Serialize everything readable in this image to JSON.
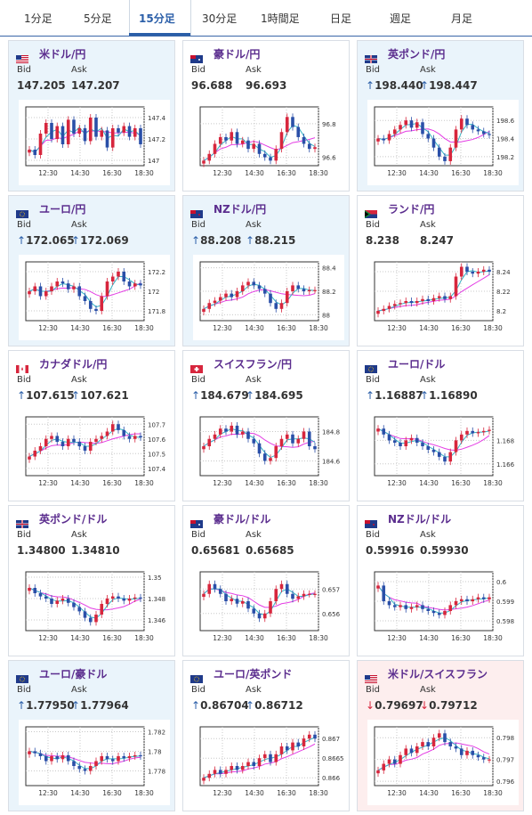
{
  "tabs": [
    "1分足",
    "5分足",
    "15分足",
    "30分足",
    "1時間足",
    "日足",
    "週足",
    "月足"
  ],
  "active_tab": "15分足",
  "labels": {
    "bid": "Bid",
    "ask": "Ask"
  },
  "xticks": [
    "12:30",
    "14:30",
    "16:30",
    "18:30"
  ],
  "colors": {
    "up": "#2a5ea8",
    "down": "#d7263d",
    "candle_up": "#d7263d",
    "candle_down": "#2a4fa8",
    "ma_long": "#e43de4",
    "ma_short": "#34b3c5",
    "active": "#2a5ea8"
  },
  "cards": [
    {
      "pair": "米ドル/円",
      "bid": "147.205",
      "ask": "147.207",
      "bid_dir": "",
      "ask_dir": "",
      "bg": "blue",
      "flag": "us",
      "yticks": [
        "147.4",
        "147.2",
        "147"
      ],
      "ylim": [
        146.95,
        147.5
      ],
      "series": [
        147.1,
        147.05,
        147.25,
        147.35,
        147.2,
        147.32,
        147.15,
        147.38,
        147.25,
        147.3,
        147.18,
        147.4,
        147.22,
        147.28,
        147.12,
        147.3,
        147.26,
        147.32,
        147.22,
        147.3,
        147.15
      ]
    },
    {
      "pair": "豪ドル/円",
      "bid": "96.688",
      "ask": "96.693",
      "bid_dir": "",
      "ask_dir": "",
      "bg": "white",
      "flag": "au",
      "yticks": [
        "96.8",
        "96.6"
      ],
      "ylim": [
        96.55,
        96.9
      ],
      "series": [
        96.58,
        96.62,
        96.68,
        96.72,
        96.7,
        96.75,
        96.68,
        96.7,
        96.65,
        96.68,
        96.62,
        96.6,
        96.58,
        96.65,
        96.75,
        96.84,
        96.78,
        96.72,
        96.68,
        96.65,
        96.66
      ]
    },
    {
      "pair": "英ポンド/円",
      "bid": "198.440",
      "ask": "198.447",
      "bid_dir": "up",
      "ask_dir": "up",
      "bg": "blue",
      "flag": "gb",
      "yticks": [
        "198.6",
        "198.4",
        "198.2"
      ],
      "ylim": [
        198.1,
        198.75
      ],
      "series": [
        198.4,
        198.38,
        198.45,
        198.5,
        198.55,
        198.6,
        198.52,
        198.58,
        198.45,
        198.4,
        198.3,
        198.2,
        198.15,
        198.3,
        198.5,
        198.62,
        198.55,
        198.5,
        198.48,
        198.45,
        198.44
      ]
    },
    {
      "pair": "ユーロ/円",
      "bid": "172.065",
      "ask": "172.069",
      "bid_dir": "up",
      "ask_dir": "up",
      "bg": "blue",
      "flag": "eu",
      "yticks": [
        "172.2",
        "172",
        "171.8"
      ],
      "ylim": [
        171.7,
        172.3
      ],
      "series": [
        172.0,
        172.05,
        171.95,
        172.0,
        172.05,
        172.1,
        172.08,
        172.02,
        172.05,
        171.95,
        171.9,
        171.82,
        171.8,
        171.95,
        172.1,
        172.15,
        172.2,
        172.1,
        172.05,
        172.08,
        172.06
      ]
    },
    {
      "pair": "NZドル/円",
      "bid": "88.208",
      "ask": "88.215",
      "bid_dir": "up",
      "ask_dir": "up",
      "bg": "blue",
      "flag": "nz",
      "yticks": [
        "88.4",
        "88.2",
        "88"
      ],
      "ylim": [
        87.95,
        88.45
      ],
      "series": [
        88.05,
        88.1,
        88.12,
        88.15,
        88.18,
        88.15,
        88.2,
        88.25,
        88.28,
        88.25,
        88.22,
        88.18,
        88.1,
        88.05,
        88.1,
        88.2,
        88.25,
        88.22,
        88.2,
        88.21,
        88.21
      ]
    },
    {
      "pair": "ランド/円",
      "bid": "8.238",
      "ask": "8.247",
      "bid_dir": "",
      "ask_dir": "",
      "bg": "white",
      "flag": "za",
      "yticks": [
        "8.24",
        "8.22",
        "8.2"
      ],
      "ylim": [
        8.19,
        8.25
      ],
      "series": [
        8.2,
        8.202,
        8.205,
        8.207,
        8.208,
        8.21,
        8.208,
        8.21,
        8.212,
        8.21,
        8.213,
        8.215,
        8.212,
        8.215,
        8.235,
        8.245,
        8.24,
        8.238,
        8.24,
        8.242,
        8.24
      ]
    },
    {
      "pair": "カナダドル/円",
      "bid": "107.615",
      "ask": "107.621",
      "bid_dir": "up",
      "ask_dir": "up",
      "bg": "white",
      "flag": "ca",
      "yticks": [
        "107.7",
        "107.6",
        "107.5",
        "107.4"
      ],
      "ylim": [
        107.35,
        107.75
      ],
      "series": [
        107.48,
        107.52,
        107.55,
        107.6,
        107.62,
        107.58,
        107.55,
        107.6,
        107.58,
        107.55,
        107.52,
        107.58,
        107.6,
        107.62,
        107.65,
        107.7,
        107.66,
        107.62,
        107.6,
        107.62,
        107.61
      ]
    },
    {
      "pair": "スイスフラン/円",
      "bid": "184.679",
      "ask": "184.695",
      "bid_dir": "up",
      "ask_dir": "up",
      "bg": "white",
      "flag": "ch",
      "yticks": [
        "184.8",
        "184.6"
      ],
      "ylim": [
        184.5,
        184.9
      ],
      "series": [
        184.7,
        184.75,
        184.78,
        184.82,
        184.8,
        184.84,
        184.78,
        184.8,
        184.75,
        184.72,
        184.65,
        184.6,
        184.62,
        184.7,
        184.75,
        184.78,
        184.72,
        184.75,
        184.8,
        184.7,
        184.68
      ]
    },
    {
      "pair": "ユーロ/ドル",
      "bid": "1.16887",
      "ask": "1.16890",
      "bid_dir": "up",
      "ask_dir": "up",
      "bg": "white",
      "flag": "eu",
      "yticks": [
        "1.168",
        "1.166"
      ],
      "ylim": [
        1.165,
        1.17
      ],
      "series": [
        1.169,
        1.1685,
        1.168,
        1.1678,
        1.1675,
        1.168,
        1.1682,
        1.1678,
        1.1675,
        1.1672,
        1.167,
        1.1666,
        1.1662,
        1.167,
        1.168,
        1.1685,
        1.1688,
        1.1686,
        1.1687,
        1.1688,
        1.1689
      ]
    },
    {
      "pair": "英ポンド/ドル",
      "bid": "1.34800",
      "ask": "1.34810",
      "bid_dir": "",
      "ask_dir": "",
      "bg": "white",
      "flag": "gb",
      "yticks": [
        "1.35",
        "1.348",
        "1.346"
      ],
      "ylim": [
        1.345,
        1.3505
      ],
      "series": [
        1.349,
        1.3485,
        1.3482,
        1.348,
        1.3475,
        1.3478,
        1.348,
        1.3476,
        1.3472,
        1.3468,
        1.3462,
        1.3458,
        1.3465,
        1.3475,
        1.348,
        1.3482,
        1.348,
        1.3478,
        1.348,
        1.3481,
        1.348
      ]
    },
    {
      "pair": "豪ドル/ドル",
      "bid": "0.65681",
      "ask": "0.65685",
      "bid_dir": "",
      "ask_dir": "",
      "bg": "white",
      "flag": "au",
      "yticks": [
        "0.657",
        "0.656"
      ],
      "ylim": [
        0.6553,
        0.6577
      ],
      "series": [
        0.6568,
        0.6572,
        0.657,
        0.6568,
        0.6565,
        0.6566,
        0.6564,
        0.6565,
        0.6562,
        0.656,
        0.6558,
        0.656,
        0.6565,
        0.657,
        0.6572,
        0.6568,
        0.6566,
        0.6567,
        0.6568,
        0.6568,
        0.6568
      ]
    },
    {
      "pair": "NZドル/ドル",
      "bid": "0.59916",
      "ask": "0.59930",
      "bid_dir": "",
      "ask_dir": "",
      "bg": "white",
      "flag": "nz",
      "yticks": [
        "0.6",
        "0.599",
        "0.598"
      ],
      "ylim": [
        0.5975,
        0.6005
      ],
      "series": [
        0.5998,
        0.599,
        0.5988,
        0.5987,
        0.5988,
        0.5986,
        0.5987,
        0.5988,
        0.5986,
        0.5985,
        0.5984,
        0.5983,
        0.5985,
        0.5988,
        0.599,
        0.5991,
        0.599,
        0.5991,
        0.5992,
        0.5991,
        0.5992
      ]
    },
    {
      "pair": "ユーロ/豪ドル",
      "bid": "1.77950",
      "ask": "1.77964",
      "bid_dir": "up",
      "ask_dir": "up",
      "bg": "blue",
      "flag": "eu",
      "yticks": [
        "1.782",
        "1.78",
        "1.778"
      ],
      "ylim": [
        1.7765,
        1.7825
      ],
      "series": [
        1.78,
        1.7798,
        1.7795,
        1.779,
        1.7795,
        1.7792,
        1.7796,
        1.779,
        1.7785,
        1.7782,
        1.778,
        1.7785,
        1.779,
        1.7795,
        1.7792,
        1.779,
        1.7795,
        1.7793,
        1.7795,
        1.7796,
        1.7795
      ]
    },
    {
      "pair": "ユーロ/英ポンド",
      "bid": "0.86704",
      "ask": "0.86712",
      "bid_dir": "up",
      "ask_dir": "up",
      "bg": "white",
      "flag": "eu",
      "yticks": [
        "0.867",
        "0.8665",
        "0.866"
      ],
      "ylim": [
        0.8658,
        0.8673
      ],
      "series": [
        0.866,
        0.8661,
        0.8662,
        0.8661,
        0.8662,
        0.8663,
        0.8662,
        0.8663,
        0.8664,
        0.8663,
        0.8665,
        0.8666,
        0.8664,
        0.8666,
        0.8668,
        0.8667,
        0.8669,
        0.8668,
        0.867,
        0.8671,
        0.867
      ]
    },
    {
      "pair": "米ドル/スイスフラン",
      "bid": "0.79697",
      "ask": "0.79712",
      "bid_dir": "down",
      "ask_dir": "down",
      "bg": "pink",
      "flag": "us",
      "yticks": [
        "0.798",
        "0.797",
        "0.796"
      ],
      "ylim": [
        0.7958,
        0.7985
      ],
      "series": [
        0.7965,
        0.7968,
        0.797,
        0.7968,
        0.7972,
        0.7975,
        0.7973,
        0.7976,
        0.7978,
        0.7976,
        0.798,
        0.7982,
        0.7978,
        0.7976,
        0.7975,
        0.7972,
        0.7974,
        0.7972,
        0.7971,
        0.797,
        0.797
      ]
    }
  ]
}
